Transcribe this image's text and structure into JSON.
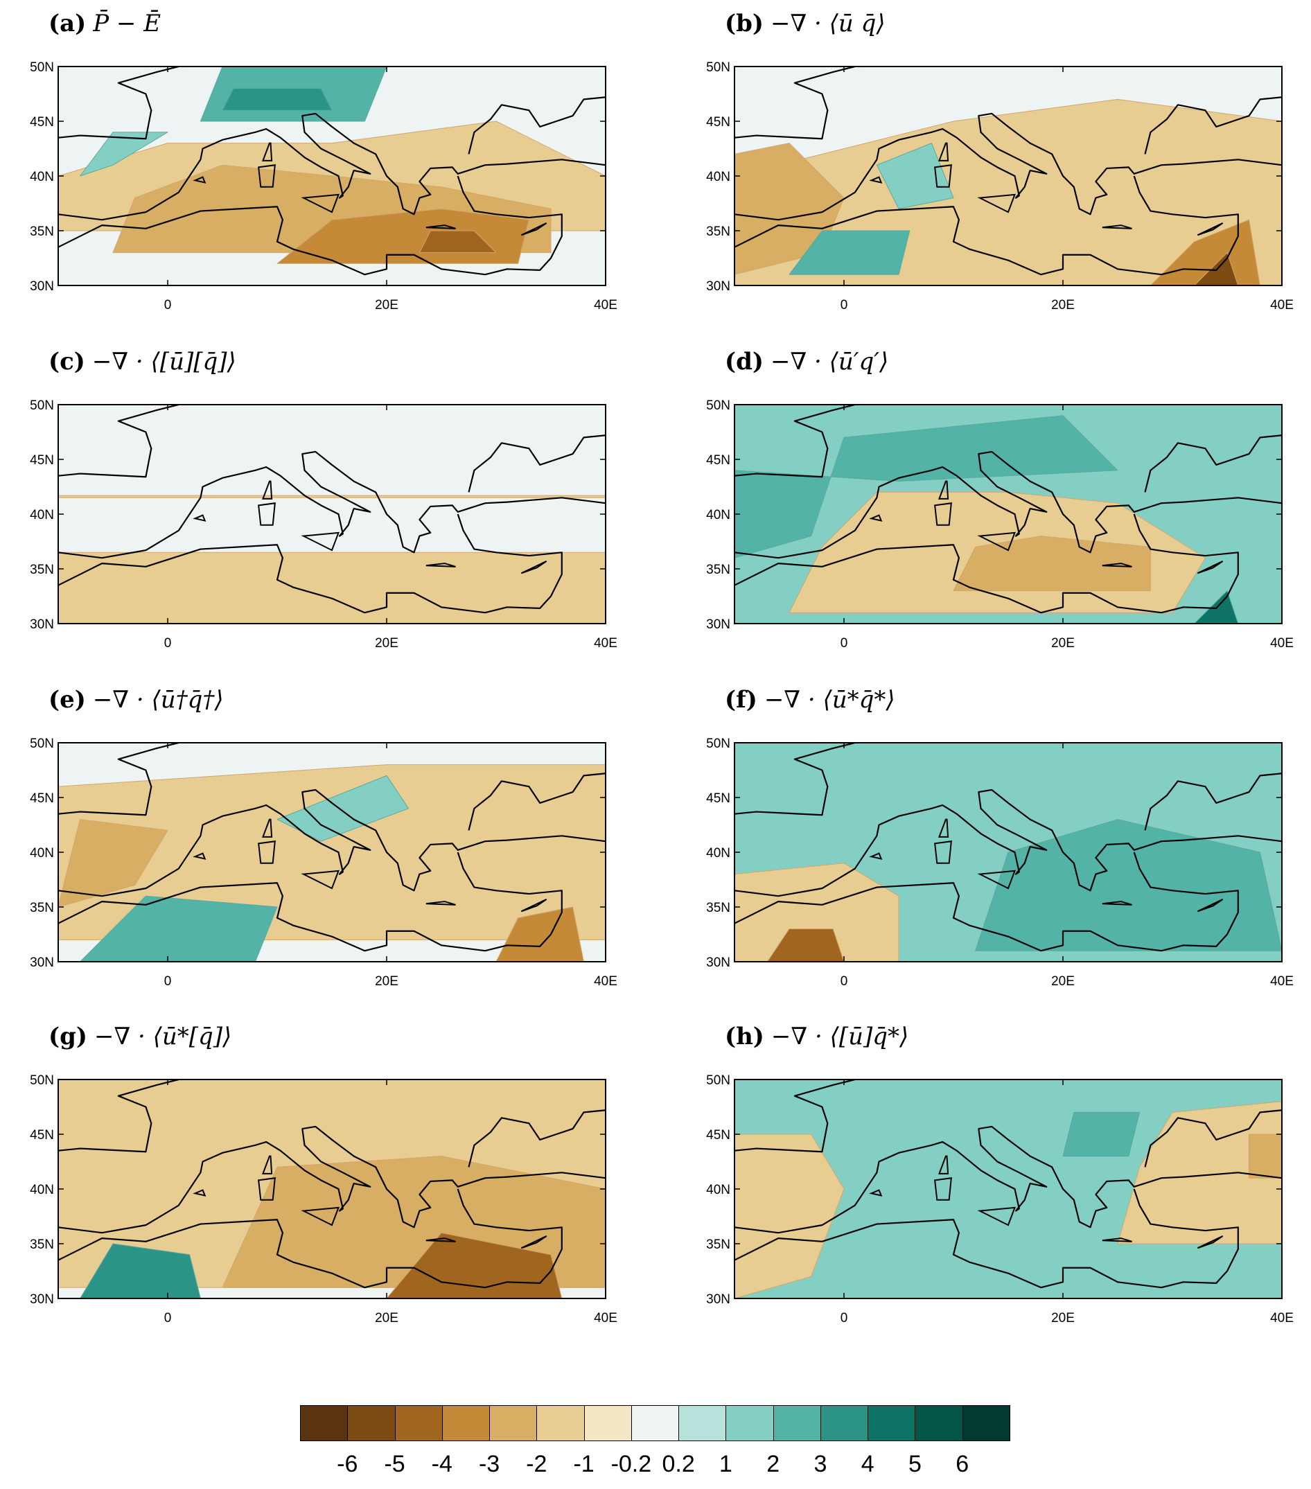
{
  "panels": [
    {
      "id": "a",
      "letter": "(a)",
      "expr": "P̄ − Ē",
      "patches": [
        [
          "-1",
          [
            [
              -10,
              35
            ],
            [
              40,
              35
            ],
            [
              40,
              40
            ],
            [
              30,
              45
            ],
            [
              15,
              43
            ],
            [
              0,
              43
            ],
            [
              -10,
              40
            ]
          ]
        ],
        [
          "-2",
          [
            [
              -5,
              33
            ],
            [
              35,
              33
            ],
            [
              35,
              37
            ],
            [
              25,
              39
            ],
            [
              15,
              40
            ],
            [
              5,
              41
            ],
            [
              -3,
              38
            ]
          ]
        ],
        [
          "-3",
          [
            [
              10,
              32
            ],
            [
              32,
              32
            ],
            [
              33,
              36
            ],
            [
              25,
              37
            ],
            [
              15,
              36
            ]
          ]
        ],
        [
          "-4",
          [
            [
              23,
              33
            ],
            [
              30,
              33
            ],
            [
              28,
              35
            ],
            [
              24,
              35
            ]
          ]
        ],
        [
          "2",
          [
            [
              3,
              45
            ],
            [
              18,
              45
            ],
            [
              20,
              50
            ],
            [
              5,
              50
            ]
          ]
        ],
        [
          "3",
          [
            [
              5,
              46
            ],
            [
              15,
              46
            ],
            [
              14,
              48
            ],
            [
              6,
              48
            ]
          ]
        ],
        [
          "1",
          [
            [
              -8,
              40
            ],
            [
              -5,
              44
            ],
            [
              0,
              44
            ],
            [
              -5,
              41
            ]
          ]
        ]
      ]
    },
    {
      "id": "b",
      "letter": "(b)",
      "expr": "−∇ · ⟨ū q̄⟩",
      "patches": [
        [
          "-1",
          [
            [
              -10,
              30
            ],
            [
              40,
              30
            ],
            [
              40,
              45
            ],
            [
              25,
              47
            ],
            [
              10,
              45
            ],
            [
              -10,
              40
            ]
          ]
        ],
        [
          "-2",
          [
            [
              -10,
              31
            ],
            [
              -2,
              33
            ],
            [
              0,
              38
            ],
            [
              -5,
              43
            ],
            [
              -10,
              42
            ]
          ]
        ],
        [
          "-3",
          [
            [
              28,
              30
            ],
            [
              38,
              30
            ],
            [
              37,
              36
            ],
            [
              32,
              34
            ]
          ]
        ],
        [
          "-5",
          [
            [
              32,
              30
            ],
            [
              36,
              30
            ],
            [
              35,
              33
            ]
          ]
        ],
        [
          "2",
          [
            [
              -5,
              31
            ],
            [
              5,
              31
            ],
            [
              6,
              35
            ],
            [
              -2,
              35
            ]
          ]
        ],
        [
          "1",
          [
            [
              3,
              41
            ],
            [
              8,
              43
            ],
            [
              10,
              38
            ],
            [
              5,
              37
            ]
          ]
        ]
      ]
    },
    {
      "id": "c",
      "letter": "(c)",
      "expr": "−∇ · ⟨[ū][q̄]⟩",
      "patches": [
        [
          "-1",
          [
            [
              -10,
              30
            ],
            [
              40,
              30
            ],
            [
              40,
              36.5
            ],
            [
              -10,
              36.5
            ]
          ]
        ],
        [
          "-1",
          [
            [
              -10,
              41.5
            ],
            [
              40,
              41.5
            ],
            [
              40,
              41.7
            ],
            [
              -10,
              41.7
            ]
          ]
        ]
      ]
    },
    {
      "id": "d",
      "letter": "(d)",
      "expr": "−∇ · ⟨ū′q′⟩",
      "patches": [
        [
          "1",
          [
            [
              -10,
              30
            ],
            [
              40,
              30
            ],
            [
              40,
              50
            ],
            [
              -10,
              50
            ]
          ]
        ],
        [
          "2",
          [
            [
              -10,
              36
            ],
            [
              -3,
              38
            ],
            [
              0,
              47
            ],
            [
              20,
              49
            ],
            [
              25,
              44
            ],
            [
              5,
              43
            ],
            [
              -10,
              44
            ]
          ]
        ],
        [
          "-1",
          [
            [
              -5,
              31
            ],
            [
              30,
              31
            ],
            [
              33,
              36
            ],
            [
              25,
              41
            ],
            [
              15,
              42
            ],
            [
              3,
              42
            ],
            [
              -2,
              37
            ]
          ]
        ],
        [
          "-2",
          [
            [
              10,
              33
            ],
            [
              28,
              33
            ],
            [
              28,
              37
            ],
            [
              18,
              38
            ],
            [
              12,
              37
            ]
          ]
        ],
        [
          "4",
          [
            [
              32,
              30
            ],
            [
              36,
              30
            ],
            [
              35,
              33
            ]
          ]
        ]
      ]
    },
    {
      "id": "e",
      "letter": "(e)",
      "expr": "−∇ · ⟨ū†q̄†⟩",
      "patches": [
        [
          "-1",
          [
            [
              -10,
              32
            ],
            [
              40,
              32
            ],
            [
              40,
              48
            ],
            [
              20,
              48
            ],
            [
              5,
              47
            ],
            [
              -10,
              46
            ]
          ]
        ],
        [
          "-2",
          [
            [
              -10,
              35
            ],
            [
              -3,
              37
            ],
            [
              0,
              42
            ],
            [
              -8,
              43
            ]
          ]
        ],
        [
          "-3",
          [
            [
              30,
              30
            ],
            [
              38,
              30
            ],
            [
              37,
              35
            ],
            [
              32,
              34
            ]
          ]
        ],
        [
          "2",
          [
            [
              -8,
              30
            ],
            [
              8,
              30
            ],
            [
              10,
              35
            ],
            [
              -2,
              36
            ]
          ]
        ],
        [
          "1",
          [
            [
              10,
              43
            ],
            [
              20,
              47
            ],
            [
              22,
              44
            ],
            [
              14,
              41
            ]
          ]
        ]
      ]
    },
    {
      "id": "f",
      "letter": "(f)",
      "expr": "−∇ · ⟨ū*q̄*⟩",
      "patches": [
        [
          "1",
          [
            [
              -10,
              30
            ],
            [
              40,
              30
            ],
            [
              40,
              50
            ],
            [
              -10,
              50
            ]
          ]
        ],
        [
          "2",
          [
            [
              12,
              31
            ],
            [
              40,
              31
            ],
            [
              38,
              40
            ],
            [
              25,
              43
            ],
            [
              15,
              40
            ]
          ]
        ],
        [
          "-1",
          [
            [
              -10,
              30
            ],
            [
              5,
              30
            ],
            [
              5,
              36
            ],
            [
              0,
              39
            ],
            [
              -10,
              38
            ]
          ]
        ],
        [
          "-4",
          [
            [
              -7,
              30
            ],
            [
              0,
              30
            ],
            [
              -1,
              33
            ],
            [
              -5,
              33
            ]
          ]
        ]
      ]
    },
    {
      "id": "g",
      "letter": "(g)",
      "expr": "−∇ · ⟨ū*[q̄]⟩",
      "patches": [
        [
          "-1",
          [
            [
              -10,
              31
            ],
            [
              40,
              31
            ],
            [
              40,
              50
            ],
            [
              -10,
              50
            ]
          ]
        ],
        [
          "-2",
          [
            [
              5,
              31
            ],
            [
              40,
              31
            ],
            [
              40,
              40
            ],
            [
              25,
              43
            ],
            [
              10,
              42
            ]
          ]
        ],
        [
          "-4",
          [
            [
              20,
              30
            ],
            [
              36,
              30
            ],
            [
              35,
              34
            ],
            [
              25,
              36
            ]
          ]
        ],
        [
          "3",
          [
            [
              -8,
              30
            ],
            [
              3,
              30
            ],
            [
              2,
              34
            ],
            [
              -5,
              35
            ]
          ]
        ]
      ]
    },
    {
      "id": "h",
      "letter": "(h)",
      "expr": "−∇ · ⟨[ū]q̄*⟩",
      "patches": [
        [
          "1",
          [
            [
              -10,
              30
            ],
            [
              40,
              30
            ],
            [
              40,
              50
            ],
            [
              -10,
              50
            ]
          ]
        ],
        [
          "-1",
          [
            [
              -10,
              30
            ],
            [
              -3,
              32
            ],
            [
              0,
              40
            ],
            [
              -3,
              45
            ],
            [
              -10,
              45
            ]
          ]
        ],
        [
          "-1",
          [
            [
              25,
              35
            ],
            [
              40,
              35
            ],
            [
              40,
              48
            ],
            [
              30,
              47
            ],
            [
              27,
              42
            ]
          ]
        ],
        [
          "-2",
          [
            [
              37,
              41
            ],
            [
              40,
              41
            ],
            [
              40,
              45
            ],
            [
              37,
              45
            ]
          ]
        ],
        [
          "2",
          [
            [
              20,
              43
            ],
            [
              26,
              43
            ],
            [
              27,
              47
            ],
            [
              21,
              47
            ]
          ]
        ]
      ]
    }
  ],
  "axis": {
    "y_ticks": [
      "30N",
      "35N",
      "40N",
      "45N",
      "50N"
    ],
    "x_ticks": [
      "0",
      "20E",
      "40E"
    ]
  },
  "colorbar": {
    "labels": [
      "-6",
      "-5",
      "-4",
      "-3",
      "-2",
      "-1",
      "-0.2",
      "0.2",
      "1",
      "2",
      "3",
      "4",
      "5",
      "6"
    ]
  },
  "colors": {
    "-6": "#5a3410",
    "-5": "#7c4b12",
    "-4": "#a0661f",
    "-3": "#c48a38",
    "-2": "#d7ae63",
    "-1": "#e8cd92",
    "-0.2": "#f4e6c3",
    "0": "#eef4f3",
    "0.2": "#b7e2dc",
    "1": "#84cfc3",
    "2": "#52b3a6",
    "3": "#2c9387",
    "4": "#0e7467",
    "5": "#035548",
    "6": "#003a30"
  }
}
